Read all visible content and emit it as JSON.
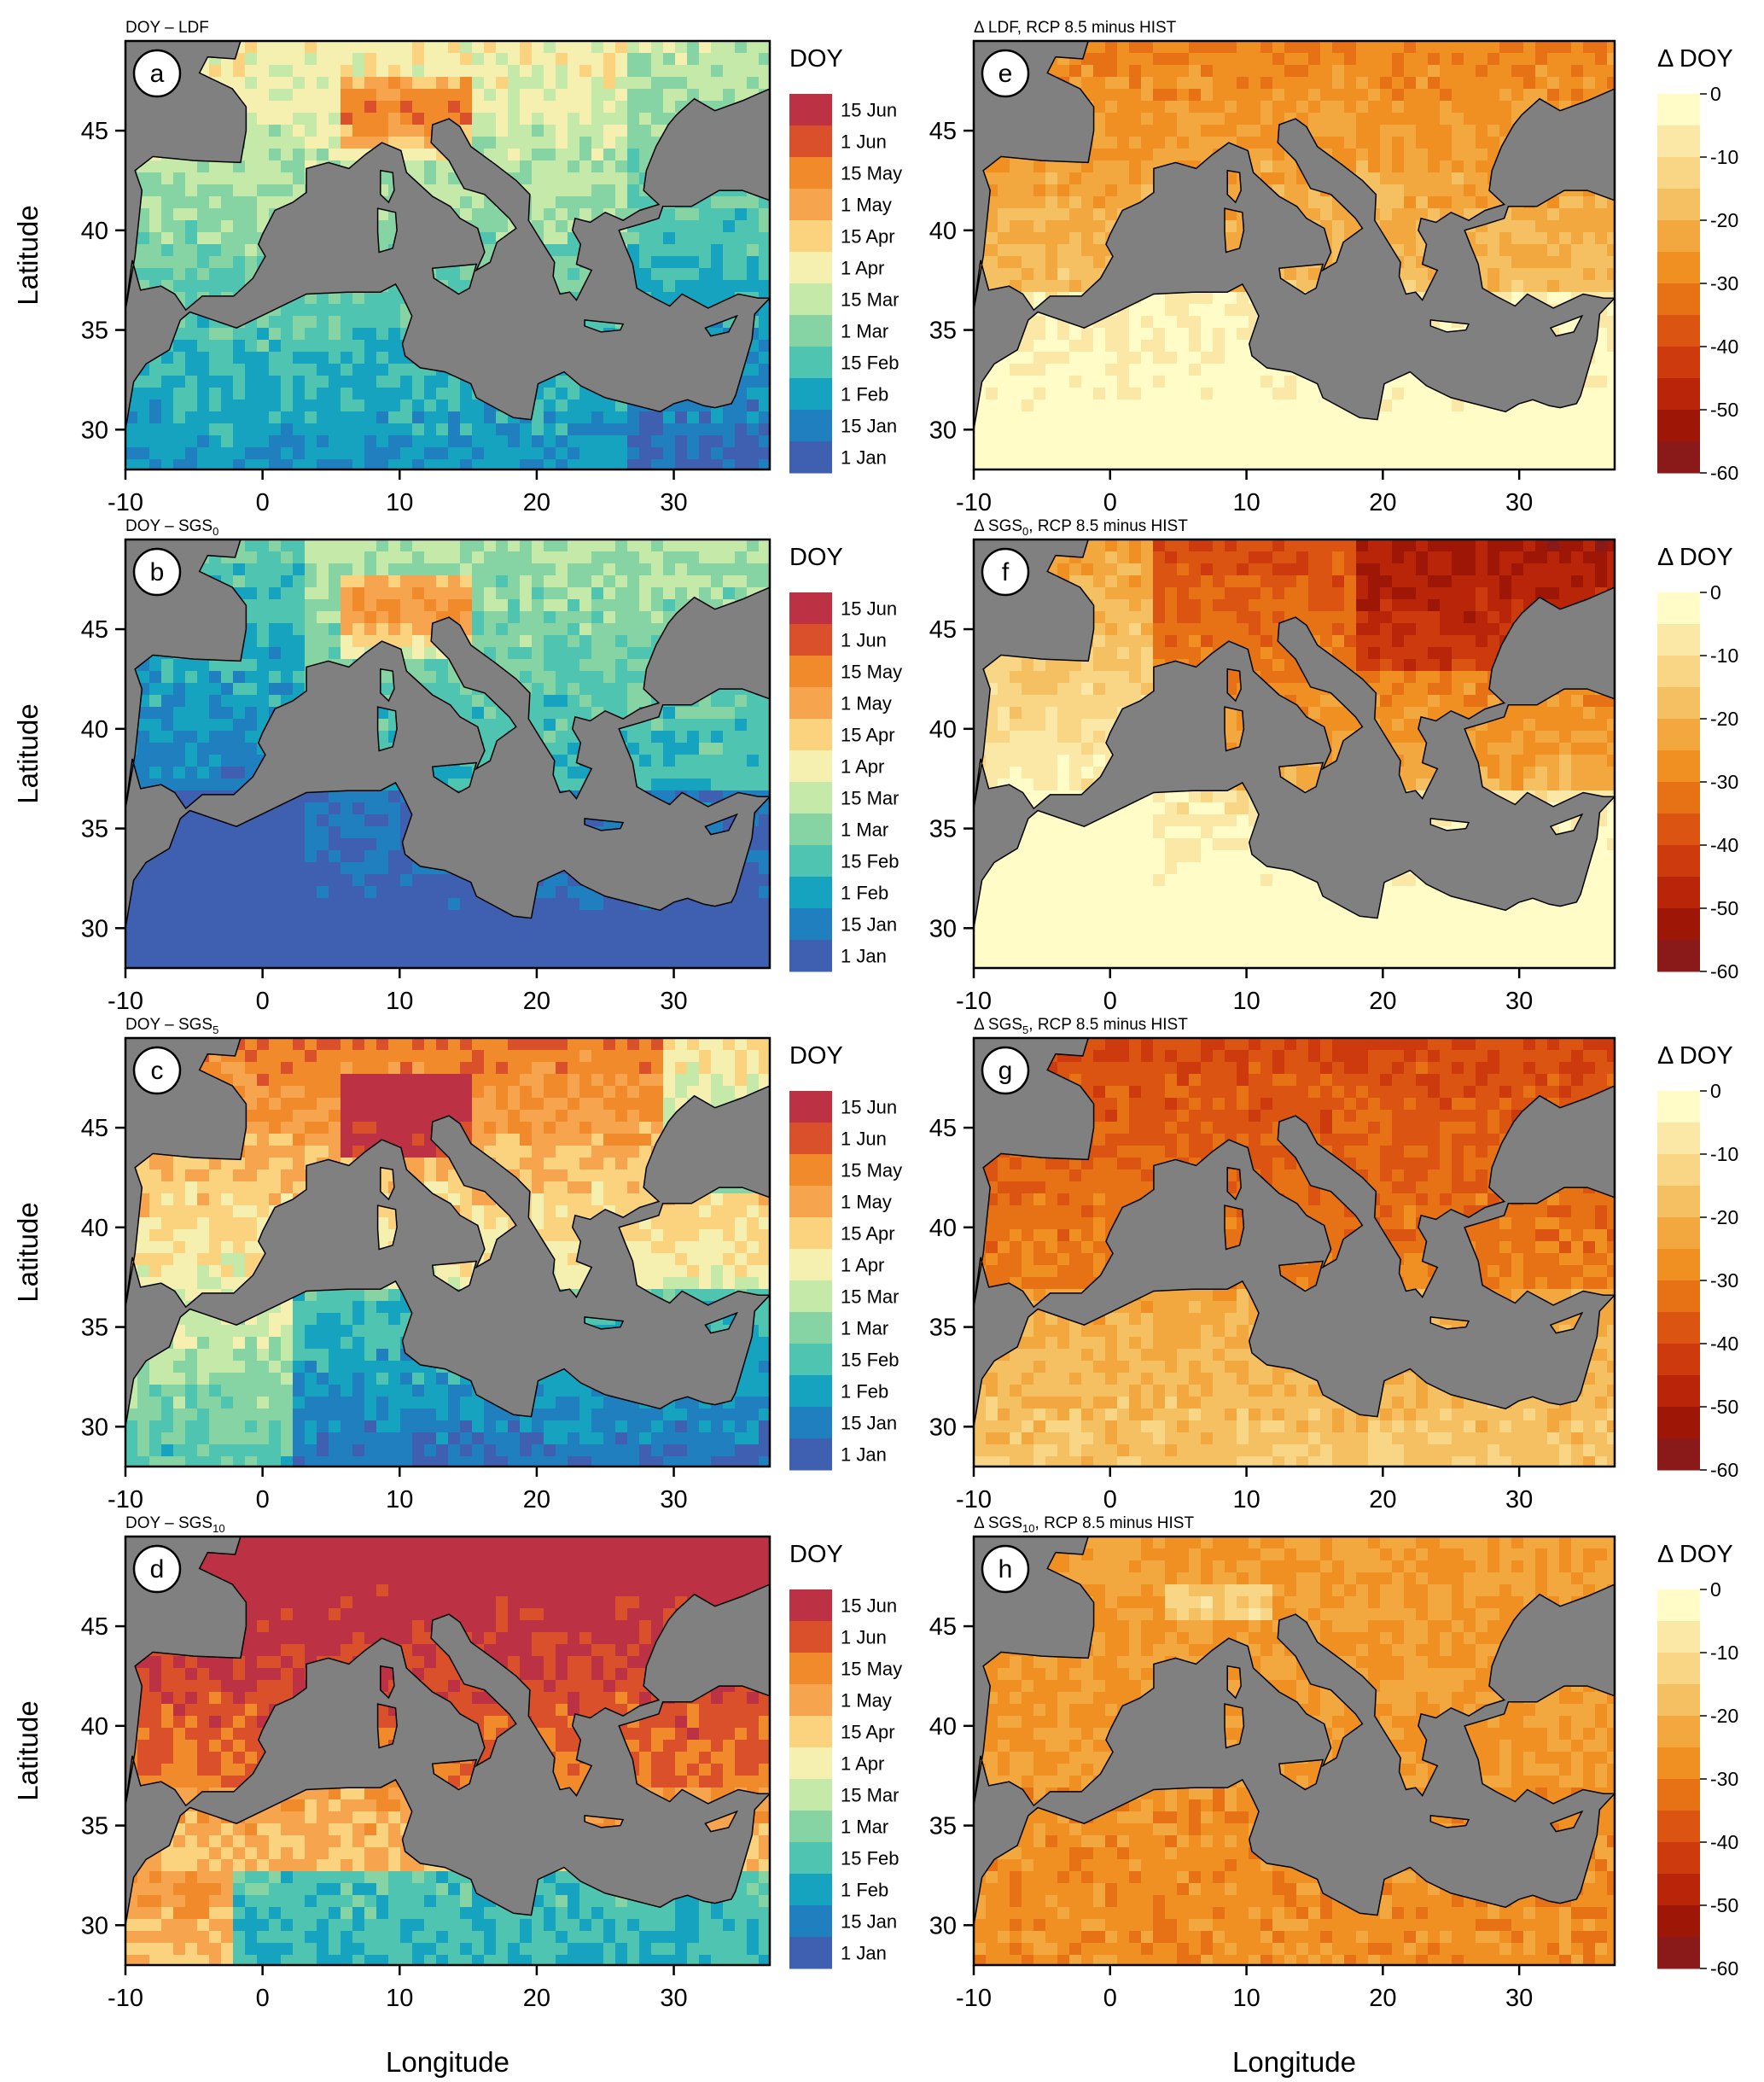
{
  "figure": {
    "xlabel": "Longitude",
    "ylabel": "Latitude",
    "x_ticks": [
      -10,
      0,
      10,
      20,
      30
    ],
    "y_ticks": [
      30,
      35,
      40,
      45
    ],
    "lon_range": [
      -10,
      37
    ],
    "lat_range": [
      28,
      49.5
    ]
  },
  "colors": {
    "sea": "#808080",
    "coast": "#000000",
    "doy_scale": [
      "#3f5fb0",
      "#1f7fbf",
      "#15a3bf",
      "#4fc4b0",
      "#86d3a4",
      "#c4e9a8",
      "#f6f0b0",
      "#fbd27e",
      "#f7a44f",
      "#f08a2a",
      "#d9502b",
      "#bd3144"
    ],
    "delta_scale": [
      "#fffcc8",
      "#fbe8a7",
      "#f8d685",
      "#f5c062",
      "#f3a83f",
      "#f09022",
      "#e77216",
      "#dc5412",
      "#cc3a0d",
      "#b82509",
      "#9d1606",
      "#8a1a1a"
    ]
  },
  "left_panels": [
    {
      "id": "a",
      "title": "DOY – LDF",
      "title_main": "DOY – LDF",
      "title_sub": "",
      "title_tail": ""
    },
    {
      "id": "b",
      "title": "DOY – SGS0",
      "title_main": "DOY – SGS",
      "title_sub": "0",
      "title_tail": ""
    },
    {
      "id": "c",
      "title": "DOY – SGS5",
      "title_main": "DOY – SGS",
      "title_sub": "5",
      "title_tail": ""
    },
    {
      "id": "d",
      "title": "DOY – SGS10",
      "title_main": "DOY – SGS",
      "title_sub": "10",
      "title_tail": ""
    }
  ],
  "right_panels": [
    {
      "id": "e",
      "title": "Δ LDF, RCP 8.5 minus HIST",
      "title_main": "Δ LDF, RCP 8.5 minus HIST",
      "title_sub": "",
      "title_tail": ""
    },
    {
      "id": "f",
      "title": "Δ SGS0, RCP 8.5 minus HIST",
      "title_main": "Δ SGS",
      "title_sub": "0",
      "title_tail": ", RCP 8.5 minus HIST"
    },
    {
      "id": "g",
      "title": "Δ SGS5, RCP 8.5 minus HIST",
      "title_main": "Δ SGS",
      "title_sub": "5",
      "title_tail": ", RCP 8.5 minus HIST"
    },
    {
      "id": "h",
      "title": "Δ SGS10, RCP 8.5 minus HIST",
      "title_main": "Δ SGS",
      "title_sub": "10",
      "title_tail": ", RCP 8.5 minus HIST"
    }
  ],
  "legend_doy": {
    "title": "DOY",
    "labels": [
      "15 Jun",
      "1 Jun",
      "15 May",
      "1 May",
      "15 Apr",
      "1 Apr",
      "15 Mar",
      "1 Mar",
      "15 Feb",
      "1 Feb",
      "15 Jan",
      "1 Jan"
    ]
  },
  "legend_delta": {
    "title": "Δ DOY",
    "labels": [
      "0",
      "-10",
      "-20",
      "-30",
      "-40",
      "-50",
      "-60"
    ]
  },
  "chart_data": [
    {
      "type": "heatmap",
      "panel": "a",
      "title": "DOY – LDF",
      "xlabel": "",
      "ylabel": "Latitude",
      "legend_title": "DOY",
      "xlim": [
        -10,
        37
      ],
      "ylim": [
        28,
        49.5
      ]
    },
    {
      "type": "heatmap",
      "panel": "b",
      "title": "DOY – SGS0",
      "xlabel": "",
      "ylabel": "Latitude",
      "legend_title": "DOY",
      "xlim": [
        -10,
        37
      ],
      "ylim": [
        28,
        49.5
      ]
    },
    {
      "type": "heatmap",
      "panel": "c",
      "title": "DOY – SGS5",
      "xlabel": "",
      "ylabel": "Latitude",
      "legend_title": "DOY",
      "xlim": [
        -10,
        37
      ],
      "ylim": [
        28,
        49.5
      ]
    },
    {
      "type": "heatmap",
      "panel": "d",
      "title": "DOY – SGS10",
      "xlabel": "Longitude",
      "ylabel": "Latitude",
      "legend_title": "DOY",
      "xlim": [
        -10,
        37
      ],
      "ylim": [
        28,
        49.5
      ]
    },
    {
      "type": "heatmap",
      "panel": "e",
      "title": "Δ LDF, RCP 8.5 minus HIST",
      "xlabel": "",
      "ylabel": "",
      "legend_title": "Δ DOY",
      "xlim": [
        -10,
        37
      ],
      "ylim": [
        28,
        49.5
      ]
    },
    {
      "type": "heatmap",
      "panel": "f",
      "title": "Δ SGS0, RCP 8.5 minus HIST",
      "xlabel": "",
      "ylabel": "",
      "legend_title": "Δ DOY",
      "xlim": [
        -10,
        37
      ],
      "ylim": [
        28,
        49.5
      ]
    },
    {
      "type": "heatmap",
      "panel": "g",
      "title": "Δ SGS5, RCP 8.5 minus HIST",
      "xlabel": "",
      "ylabel": "",
      "legend_title": "Δ DOY",
      "xlim": [
        -10,
        37
      ],
      "ylim": [
        28,
        49.5
      ]
    },
    {
      "type": "heatmap",
      "panel": "h",
      "title": "Δ SGS10, RCP 8.5 minus HIST",
      "xlabel": "Longitude",
      "ylabel": "",
      "legend_title": "Δ DOY",
      "xlim": [
        -10,
        37
      ],
      "ylim": [
        28,
        49.5
      ]
    }
  ]
}
